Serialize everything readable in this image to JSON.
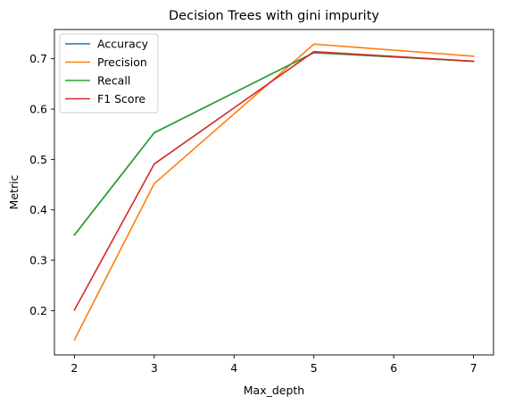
{
  "chart_data": {
    "type": "line",
    "title": "Decision Trees with gini impurity",
    "xlabel": "Max_depth",
    "ylabel": "Metric",
    "x": [
      2,
      3,
      5,
      7
    ],
    "xticks": [
      2,
      3,
      4,
      5,
      6,
      7
    ],
    "yticks": [
      0.2,
      0.3,
      0.4,
      0.5,
      0.6,
      0.7
    ],
    "xlim": [
      1.75,
      7.25
    ],
    "ylim": [
      0.112,
      0.758
    ],
    "grid": false,
    "legend_position": "top-left",
    "series": [
      {
        "name": "Accuracy",
        "color": "#1f77b4",
        "values": [
          0.35,
          0.553,
          0.712,
          0.695
        ]
      },
      {
        "name": "Precision",
        "color": "#ff7f0e",
        "values": [
          0.142,
          0.452,
          0.729,
          0.705
        ]
      },
      {
        "name": "Recall",
        "color": "#2ca02c",
        "values": [
          0.35,
          0.553,
          0.712,
          0.695
        ]
      },
      {
        "name": "F1 Score",
        "color": "#d62728",
        "values": [
          0.201,
          0.491,
          0.714,
          0.695
        ]
      }
    ]
  }
}
